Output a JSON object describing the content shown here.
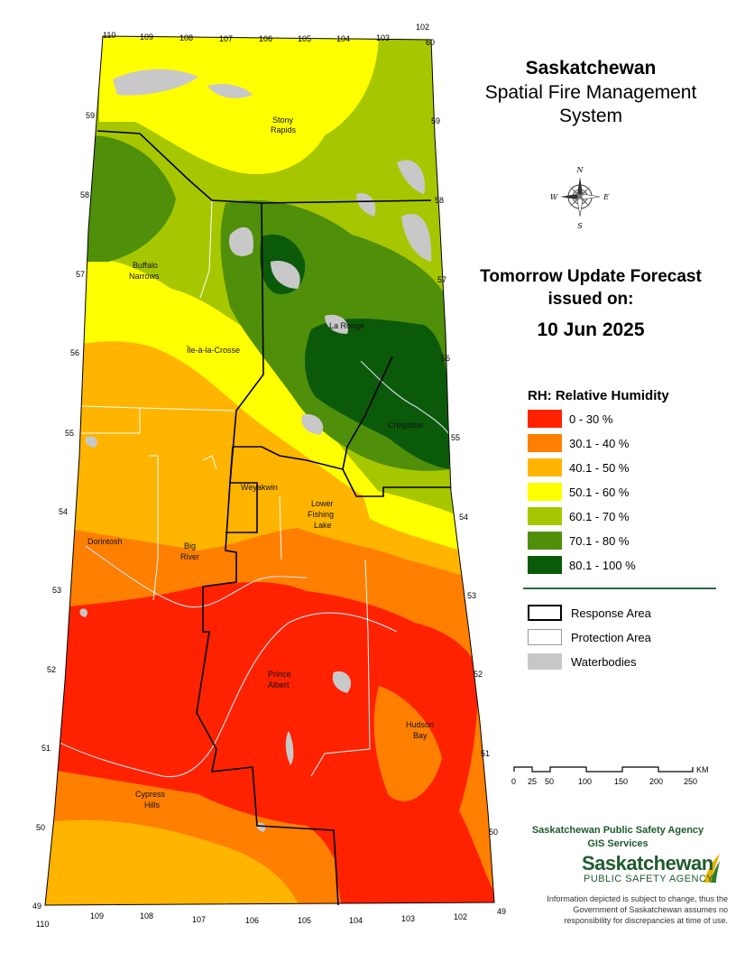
{
  "title": {
    "line1": "Saskatchewan",
    "line2": "Spatial Fire Management",
    "line3": "System"
  },
  "forecast": {
    "line1": "Tomorrow Update Forecast",
    "line2": "issued on:",
    "date": "10 Jun 2025"
  },
  "legend": {
    "title": "RH: Relative Humidity",
    "classes": [
      {
        "label": "0 - 30 %",
        "color": "#ff2200"
      },
      {
        "label": "30.1 - 40 %",
        "color": "#ff7f00"
      },
      {
        "label": "40.1 - 50 %",
        "color": "#ffb400"
      },
      {
        "label": "50.1 - 60 %",
        "color": "#ffff00"
      },
      {
        "label": "60.1 - 70 %",
        "color": "#a6c700"
      },
      {
        "label": "70.1 - 80 %",
        "color": "#4f8f0a"
      },
      {
        "label": "80.1 - 100 %",
        "color": "#0a5a0a"
      }
    ],
    "features": [
      {
        "label": "Response Area"
      },
      {
        "label": "Protection Area"
      },
      {
        "label": "Waterbodies",
        "color": "#c8c8c8"
      }
    ]
  },
  "scale": {
    "unit": "KM",
    "ticks": [
      "0",
      "25",
      "50",
      "100",
      "150",
      "200",
      "250"
    ]
  },
  "agency": {
    "line1": "Saskatchewan Public Safety Agency",
    "line2": "GIS  Services"
  },
  "logo": {
    "main": "Saskatchewan",
    "sub": "PUBLIC SAFETY AGENCY",
    "color": "#1f5a2f"
  },
  "disclaimer": "Information depicted is subject to change, thus the Government of Saskatchewan assumes no responsibility for discrepancies at time of use.",
  "places": {
    "stony": [
      "Stony",
      "Rapids"
    ],
    "buffalo": [
      "Buffalo",
      "Narrows"
    ],
    "ile": "Île-à-la-Crosse",
    "laronge": "La Ronge",
    "creighton": "Creighton",
    "weyakwin": "Weyakwin",
    "lower": [
      "Lower",
      "Fishing",
      "Lake"
    ],
    "dorintosh": "Dorintosh",
    "bigriver": [
      "Big",
      "River"
    ],
    "princealbert": [
      "Prince",
      "Albert"
    ],
    "hudsonbay": [
      "Hudson",
      "Bay"
    ],
    "cypress": [
      "Cypress",
      "Hills"
    ]
  },
  "grid": {
    "top_lon": [
      "110",
      "109",
      "108",
      "107",
      "106",
      "105",
      "104",
      "103",
      "102"
    ],
    "bottom_lon": [
      "110",
      "109",
      "108",
      "107",
      "106",
      "105",
      "104",
      "103",
      "102"
    ],
    "lat": [
      "60",
      "59",
      "58",
      "57",
      "56",
      "55",
      "54",
      "53",
      "52",
      "51",
      "50",
      "49"
    ]
  }
}
